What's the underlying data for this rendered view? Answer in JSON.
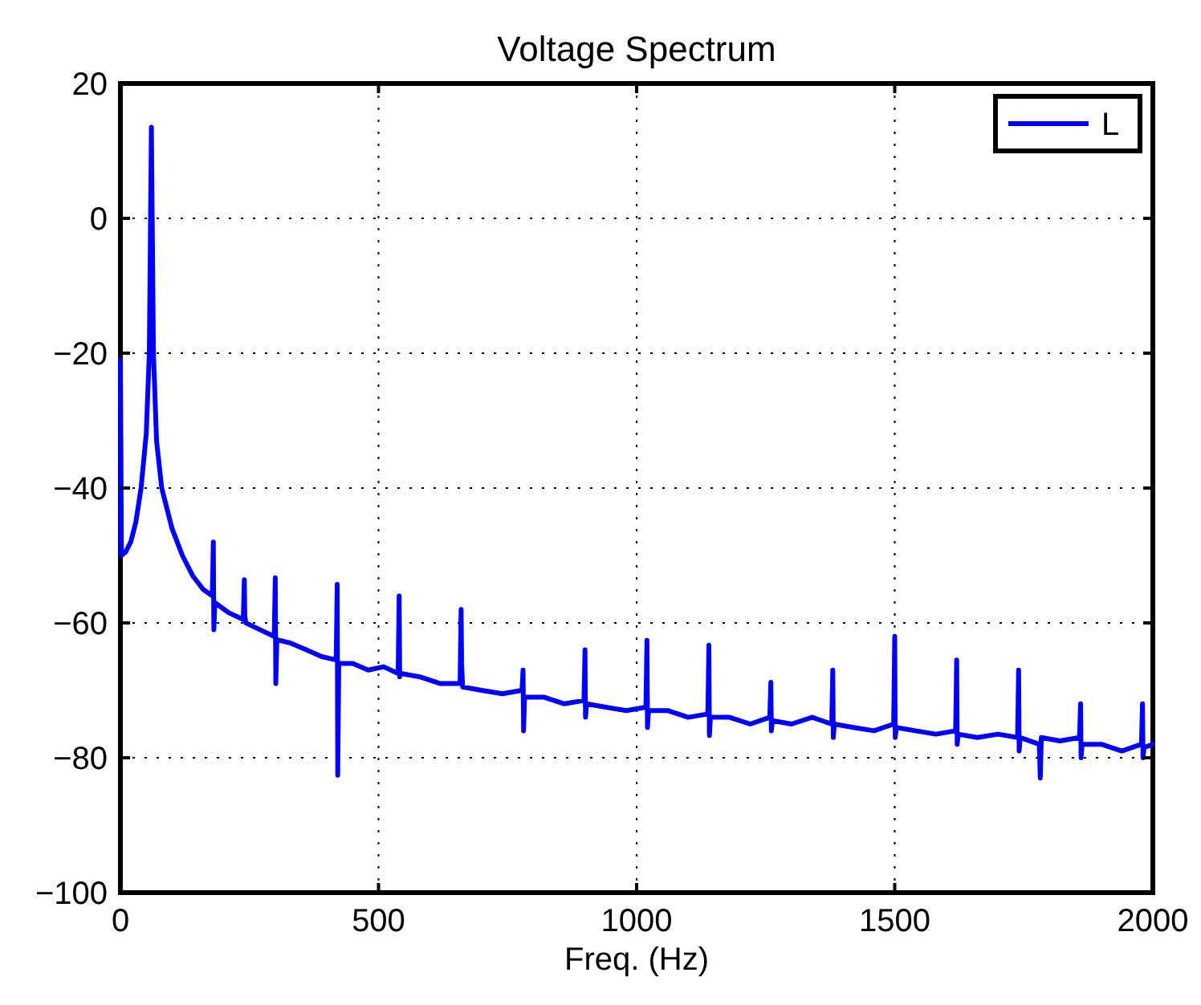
{
  "chart_data": {
    "type": "line",
    "title": "Voltage Spectrum",
    "xlabel": "Freq. (Hz)",
    "xlim": [
      0,
      2000
    ],
    "xticks": [
      0,
      500,
      1000,
      1500,
      2000
    ],
    "ylim": [
      -100,
      20
    ],
    "yticks": [
      -100,
      -80,
      -60,
      -40,
      -20,
      0,
      20
    ],
    "grid": true,
    "legend": "top right",
    "line_style": "solid",
    "marker": "none",
    "series": [
      {
        "name": "L",
        "color": "#0000ff",
        "x": [
          0,
          2,
          10,
          20,
          30,
          40,
          50,
          56,
          59,
          60,
          61,
          64,
          70,
          80,
          100,
          120,
          140,
          160,
          178,
          180,
          181,
          183,
          210,
          238,
          240,
          241,
          243,
          270,
          298,
          300,
          301,
          303,
          330,
          360,
          390,
          418,
          420,
          421,
          423,
          450,
          480,
          510,
          538,
          540,
          541,
          543,
          580,
          620,
          658,
          660,
          661,
          663,
          700,
          740,
          778,
          780,
          781,
          783,
          820,
          860,
          898,
          900,
          901,
          903,
          940,
          980,
          1018,
          1020,
          1021,
          1023,
          1060,
          1100,
          1138,
          1140,
          1141,
          1143,
          1180,
          1220,
          1258,
          1260,
          1261,
          1263,
          1300,
          1340,
          1378,
          1380,
          1381,
          1383,
          1420,
          1460,
          1498,
          1500,
          1501,
          1503,
          1540,
          1580,
          1618,
          1620,
          1621,
          1623,
          1660,
          1700,
          1738,
          1740,
          1741,
          1743,
          1780,
          1782,
          1784,
          1820,
          1858,
          1860,
          1861,
          1863,
          1900,
          1940,
          1978,
          1980,
          1981,
          1983,
          2000
        ],
        "values": [
          -21,
          -50,
          -49.5,
          -48,
          -45,
          -40,
          -32,
          -20,
          5,
          13.5,
          5,
          -20,
          -33,
          -40,
          -46,
          -50,
          -53,
          -55,
          -56,
          -48,
          -61,
          -57,
          -58.5,
          -59.5,
          -53.6,
          -59,
          -60,
          -61,
          -62,
          -53.3,
          -69,
          -62.5,
          -63,
          -64,
          -65,
          -65.5,
          -54.3,
          -82.6,
          -66,
          -66,
          -67,
          -66.5,
          -67.5,
          -56,
          -68,
          -67.5,
          -68,
          -69,
          -69,
          -58,
          -66,
          -69.5,
          -70,
          -70.5,
          -70,
          -67,
          -76,
          -71,
          -71,
          -72,
          -71.5,
          -64,
          -74,
          -72,
          -72.5,
          -73,
          -72.5,
          -62.6,
          -75.5,
          -73,
          -73,
          -74,
          -73.5,
          -63.3,
          -76.7,
          -74,
          -74,
          -75,
          -74,
          -68.8,
          -76,
          -74.5,
          -75,
          -74,
          -75,
          -67,
          -77,
          -75,
          -75.5,
          -76,
          -75,
          -62,
          -77,
          -75.5,
          -76,
          -76.5,
          -76,
          -65.5,
          -78,
          -76.5,
          -77,
          -76.5,
          -77,
          -67,
          -79,
          -77,
          -78,
          -83,
          -77,
          -77.5,
          -77,
          -72,
          -80,
          -78,
          -78,
          -79,
          -78,
          -72,
          -80,
          -78.5,
          -78
        ]
      }
    ]
  }
}
